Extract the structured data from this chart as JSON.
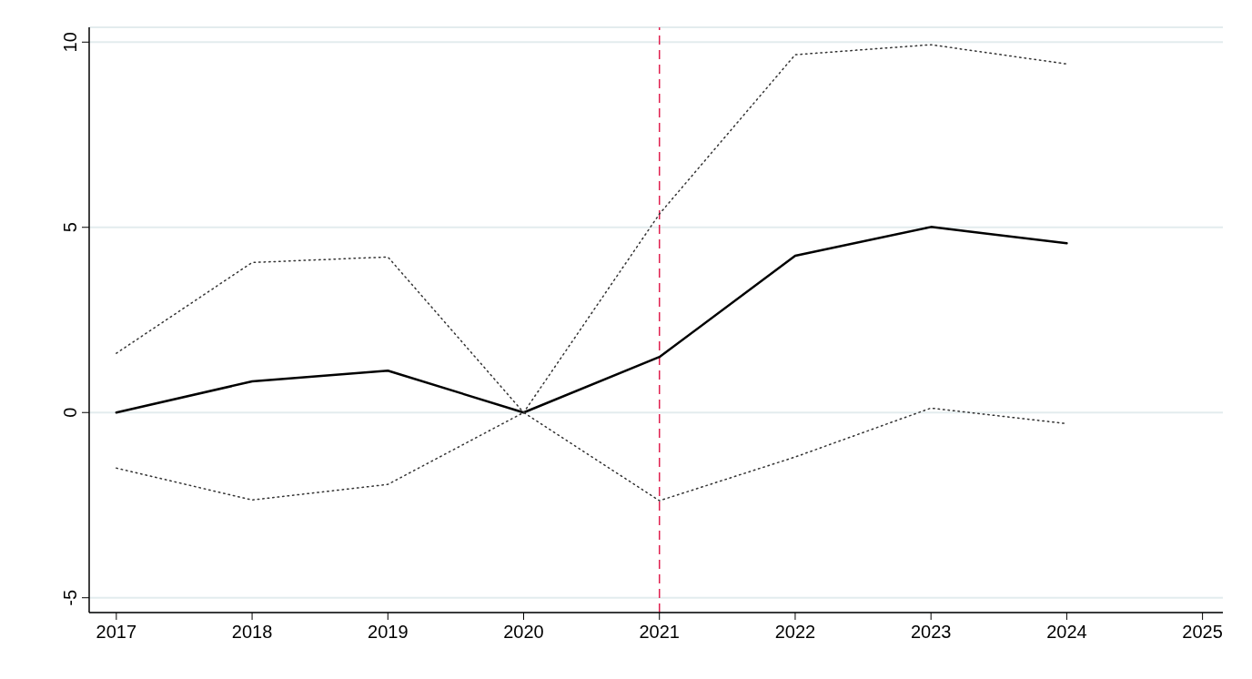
{
  "chart_data": {
    "type": "line",
    "x": [
      2017,
      2018,
      2019,
      2020,
      2021,
      2022,
      2023,
      2024
    ],
    "series": [
      {
        "color": "#000000",
        "line_style": "solid",
        "values": [
          0,
          0.84,
          1.13,
          0,
          1.5,
          4.23,
          5.01,
          4.57
        ]
      },
      {
        "color": "#333333",
        "line_style": "dotted",
        "values": [
          1.6,
          4.05,
          4.2,
          0,
          5.36,
          9.66,
          9.93,
          9.41
        ]
      },
      {
        "color": "#333333",
        "line_style": "dotted",
        "values": [
          -1.5,
          -2.36,
          -1.94,
          0,
          -2.38,
          -1.2,
          0.12,
          -0.3
        ]
      }
    ],
    "xlim": [
      2016.8,
      2025.15
    ],
    "xticks": [
      2017,
      2018,
      2019,
      2020,
      2021,
      2022,
      2023,
      2024,
      2025
    ],
    "ylim": [
      -5.4,
      10.4
    ],
    "yticks": [
      -5,
      0,
      5,
      10
    ],
    "grid": "y",
    "marker": "none",
    "ref_lines": [
      {
        "axis": "x",
        "value": 2021,
        "color": "#e0204f",
        "line_style": "dashed"
      }
    ]
  }
}
